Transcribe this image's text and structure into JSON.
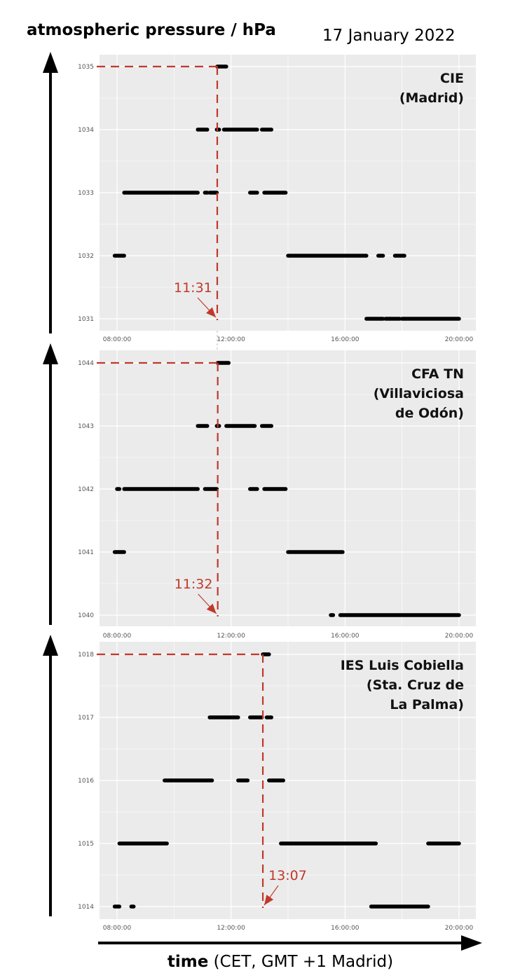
{
  "header": {
    "y_axis_label": "atmospheric pressure / hPa",
    "date": "17 January 2022"
  },
  "x_axis_label": {
    "bold": "time",
    "rest": " (CET, GMT +1 Madrid)"
  },
  "colors": {
    "panel_bg": "#ebebeb",
    "grid": "#ffffff",
    "points": "#000000",
    "annotation": "#c0392b",
    "arrows": "#000000"
  },
  "chart_data": [
    {
      "type": "scatter",
      "site": [
        "CIE",
        "(Madrid)"
      ],
      "x_ticks": [
        "08:00:00",
        "12:00:00",
        "16:00:00",
        "20:00:00"
      ],
      "y_ticks": [
        1031,
        1032,
        1033,
        1034,
        1035
      ],
      "ylim": [
        1031,
        1035
      ],
      "xlim": [
        "07:30",
        "20:40"
      ],
      "segments": [
        {
          "y": 1035,
          "from": "11:31",
          "to": "11:50"
        },
        {
          "y": 1034,
          "from": "10:50",
          "to": "11:10"
        },
        {
          "y": 1034,
          "from": "11:30",
          "to": "11:35"
        },
        {
          "y": 1034,
          "from": "11:45",
          "to": "12:55"
        },
        {
          "y": 1034,
          "from": "13:05",
          "to": "13:25"
        },
        {
          "y": 1033,
          "from": "08:15",
          "to": "10:50"
        },
        {
          "y": 1033,
          "from": "11:05",
          "to": "11:10"
        },
        {
          "y": 1033,
          "from": "11:15",
          "to": "11:30"
        },
        {
          "y": 1033,
          "from": "12:40",
          "to": "12:55"
        },
        {
          "y": 1033,
          "from": "13:10",
          "to": "13:55"
        },
        {
          "y": 1032,
          "from": "07:55",
          "to": "08:15"
        },
        {
          "y": 1032,
          "from": "14:00",
          "to": "16:45"
        },
        {
          "y": 1032,
          "from": "17:10",
          "to": "17:20"
        },
        {
          "y": 1032,
          "from": "17:45",
          "to": "18:05"
        },
        {
          "y": 1031,
          "from": "16:45",
          "to": "17:20"
        },
        {
          "y": 1031,
          "from": "17:25",
          "to": "17:55"
        },
        {
          "y": 1031,
          "from": "18:00",
          "to": "20:00"
        }
      ],
      "annotation": {
        "label": "11:31",
        "time": "11:31",
        "value": 1035
      }
    },
    {
      "type": "scatter",
      "site": [
        "CFA TN",
        "(Villaviciosa",
        "de Odón)"
      ],
      "x_ticks": [
        "08:00:00",
        "12:00:00",
        "16:00:00",
        "20:00:00"
      ],
      "y_ticks": [
        1040,
        1041,
        1042,
        1043,
        1044
      ],
      "ylim": [
        1040,
        1044
      ],
      "xlim": [
        "07:30",
        "20:40"
      ],
      "segments": [
        {
          "y": 1044,
          "from": "11:32",
          "to": "11:55"
        },
        {
          "y": 1043,
          "from": "10:50",
          "to": "11:10"
        },
        {
          "y": 1043,
          "from": "11:30",
          "to": "11:35"
        },
        {
          "y": 1043,
          "from": "11:50",
          "to": "12:50"
        },
        {
          "y": 1043,
          "from": "13:05",
          "to": "13:25"
        },
        {
          "y": 1042,
          "from": "08:00",
          "to": "08:05"
        },
        {
          "y": 1042,
          "from": "08:15",
          "to": "10:50"
        },
        {
          "y": 1042,
          "from": "11:05",
          "to": "11:30"
        },
        {
          "y": 1042,
          "from": "12:40",
          "to": "12:55"
        },
        {
          "y": 1042,
          "from": "13:10",
          "to": "13:55"
        },
        {
          "y": 1041,
          "from": "07:55",
          "to": "08:15"
        },
        {
          "y": 1041,
          "from": "14:00",
          "to": "15:55"
        },
        {
          "y": 1040,
          "from": "15:30",
          "to": "15:35"
        },
        {
          "y": 1040,
          "from": "15:50",
          "to": "20:00"
        }
      ],
      "annotation": {
        "label": "11:32",
        "time": "11:32",
        "value": 1044
      }
    },
    {
      "type": "scatter",
      "site": [
        "IES Luis Cobiella",
        "(Sta. Cruz de",
        "La Palma)"
      ],
      "x_ticks": [
        "08:00:00",
        "12:00:00",
        "16:00:00",
        "20:00:00"
      ],
      "y_ticks": [
        1014,
        1015,
        1016,
        1017,
        1018
      ],
      "ylim": [
        1014,
        1018
      ],
      "xlim": [
        "07:30",
        "20:40"
      ],
      "segments": [
        {
          "y": 1018,
          "from": "13:07",
          "to": "13:20"
        },
        {
          "y": 1017,
          "from": "11:15",
          "to": "12:15"
        },
        {
          "y": 1017,
          "from": "12:40",
          "to": "13:05"
        },
        {
          "y": 1017,
          "from": "13:15",
          "to": "13:25"
        },
        {
          "y": 1016,
          "from": "09:40",
          "to": "11:20"
        },
        {
          "y": 1016,
          "from": "12:15",
          "to": "12:35"
        },
        {
          "y": 1016,
          "from": "13:20",
          "to": "13:50"
        },
        {
          "y": 1015,
          "from": "08:05",
          "to": "09:45"
        },
        {
          "y": 1015,
          "from": "13:45",
          "to": "17:05"
        },
        {
          "y": 1015,
          "from": "18:55",
          "to": "20:00"
        },
        {
          "y": 1014,
          "from": "07:55",
          "to": "08:05"
        },
        {
          "y": 1014,
          "from": "08:30",
          "to": "08:35"
        },
        {
          "y": 1014,
          "from": "16:55",
          "to": "18:55"
        }
      ],
      "annotation": {
        "label": "13:07",
        "time": "13:07",
        "value": 1018
      }
    }
  ]
}
